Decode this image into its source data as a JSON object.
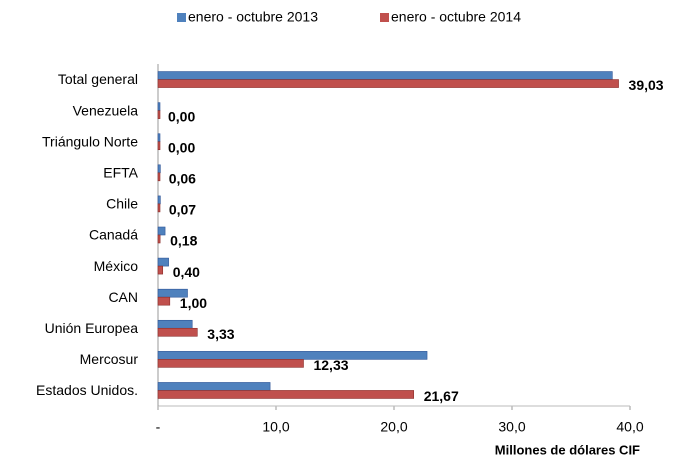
{
  "chart_data": {
    "type": "bar",
    "orientation": "horizontal",
    "categories": [
      "Total general",
      "Venezuela",
      "Triángulo Norte",
      "EFTA",
      "Chile",
      "Canadá",
      "México",
      "CAN",
      "Unión Europea",
      "Mercosur",
      "Estados Unidos."
    ],
    "series": [
      {
        "name": "enero - octubre 2013",
        "color": "#4f81bd",
        "values": [
          38.5,
          0.1,
          0.1,
          0.2,
          0.2,
          0.6,
          0.9,
          2.5,
          2.9,
          22.8,
          9.5
        ]
      },
      {
        "name": "enero - octubre 2014",
        "color": "#c0504d",
        "values": [
          39.03,
          0.0,
          0.0,
          0.06,
          0.07,
          0.18,
          0.4,
          1.0,
          3.33,
          12.33,
          21.67
        ],
        "value_labels": [
          "39,03",
          "0,00",
          "0,00",
          "0,06",
          "0,07",
          "0,18",
          "0,40",
          "1,00",
          "3,33",
          "12,33",
          "21,67"
        ]
      }
    ],
    "x_label": "Millones de dólares CIF",
    "xlim": [
      0,
      40
    ],
    "xticks": [
      {
        "value": 0,
        "label": "-"
      },
      {
        "value": 10,
        "label": "10,0"
      },
      {
        "value": 20,
        "label": "20,0"
      },
      {
        "value": 30,
        "label": "30,0"
      },
      {
        "value": 40,
        "label": "40,0"
      }
    ],
    "legend": "top"
  }
}
